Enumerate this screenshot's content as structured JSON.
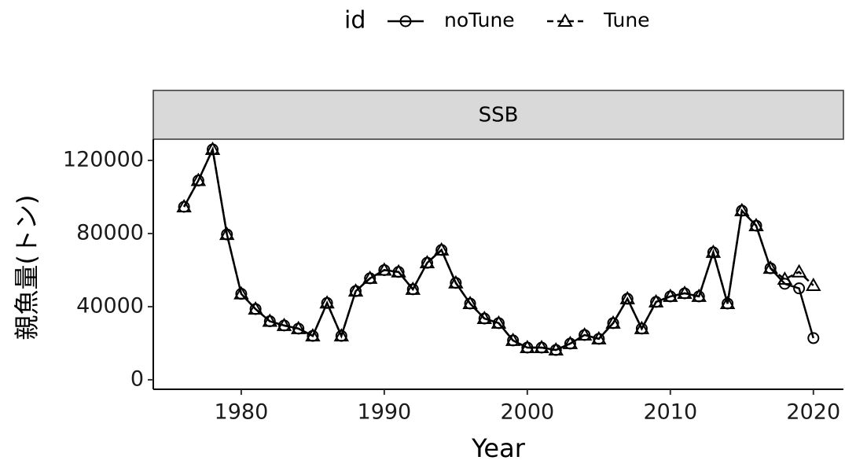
{
  "chart_data": {
    "type": "line",
    "panel_title": "SSB",
    "x_label": "Year",
    "y_label": "親魚量(トン)",
    "legend_title": "id",
    "legend_position": "top",
    "x": [
      1976,
      1977,
      1978,
      1979,
      1980,
      1981,
      1982,
      1983,
      1984,
      1985,
      1986,
      1987,
      1988,
      1989,
      1990,
      1991,
      1992,
      1993,
      1994,
      1995,
      1996,
      1997,
      1998,
      1999,
      2000,
      2001,
      2002,
      2003,
      2004,
      2005,
      2006,
      2007,
      2008,
      2009,
      2010,
      2011,
      2012,
      2013,
      2014,
      2015,
      2016,
      2017,
      2018,
      2019,
      2020
    ],
    "xlim": [
      1973.85,
      2022.1
    ],
    "xticks": [
      1980,
      1990,
      2000,
      2010,
      2020
    ],
    "ylim": [
      -5200,
      131600
    ],
    "yticks": [
      0,
      40000,
      80000,
      120000
    ],
    "grid": false,
    "series": [
      {
        "name": "noTune",
        "color": "#000000",
        "marker": "circle",
        "dashed": false,
        "values": [
          94600,
          109000,
          126000,
          79500,
          47000,
          38700,
          32000,
          29700,
          28000,
          24000,
          42000,
          24000,
          48500,
          55500,
          60000,
          59000,
          49500,
          64000,
          71000,
          53000,
          41700,
          33500,
          31000,
          21500,
          17600,
          17600,
          16300,
          19800,
          24500,
          22400,
          31000,
          44300,
          28000,
          42600,
          45600,
          47300,
          45600,
          69700,
          41700,
          92500,
          84300,
          61000,
          52500,
          50000,
          22800
        ]
      },
      {
        "name": "Tune",
        "color": "#000000",
        "marker": "triangle",
        "dashed": true,
        "values": [
          94600,
          109000,
          126000,
          79500,
          47000,
          38700,
          32000,
          29700,
          28000,
          24000,
          42000,
          24000,
          48500,
          55500,
          60000,
          59000,
          49500,
          64000,
          71000,
          53000,
          41700,
          33500,
          31000,
          21500,
          17600,
          17600,
          16300,
          19800,
          24500,
          22400,
          31000,
          44300,
          28000,
          42600,
          45600,
          47300,
          45600,
          69700,
          41700,
          92500,
          84300,
          61000,
          55000,
          59000,
          51600
        ]
      }
    ]
  }
}
